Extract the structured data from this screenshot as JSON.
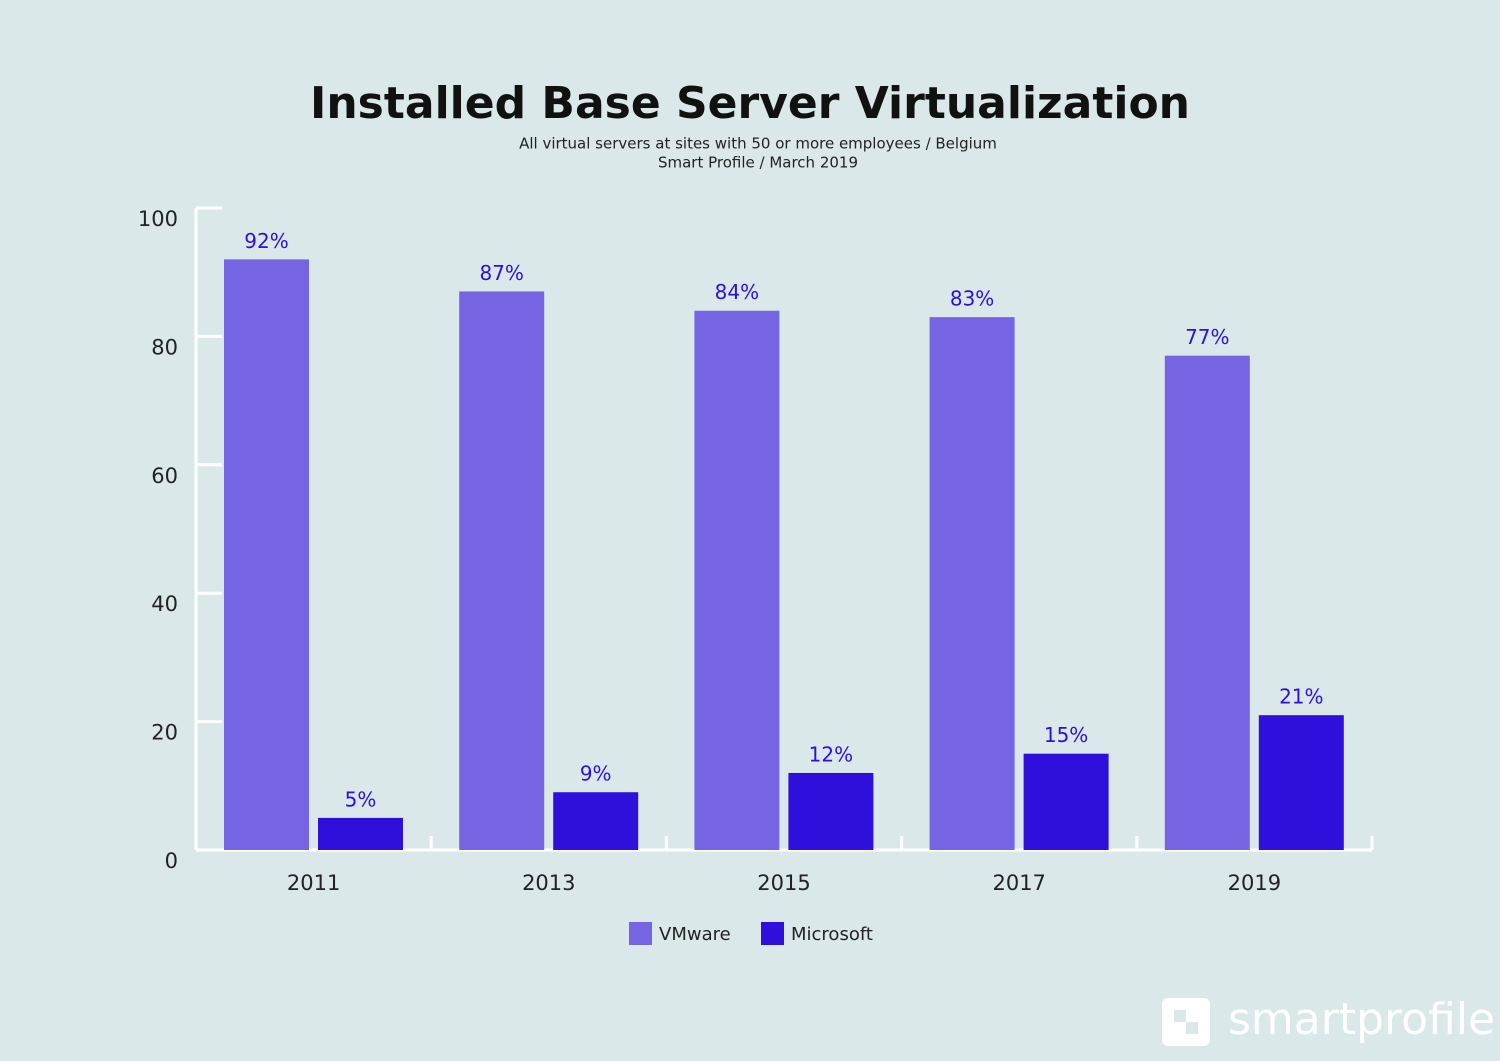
{
  "chart_data": {
    "type": "bar",
    "title": "Installed Base Server Virtualization",
    "subtitle": [
      "All virtual servers at sites with 50 or more employees / Belgium",
      "Smart Profile / March 2019"
    ],
    "categories": [
      "2011",
      "2013",
      "2015",
      "2017",
      "2019"
    ],
    "series": [
      {
        "name": "VMware",
        "color": "#7565e3",
        "values": [
          92,
          87,
          84,
          83,
          77
        ],
        "value_labels": [
          "92%",
          "87%",
          "84%",
          "83%",
          "77%"
        ]
      },
      {
        "name": "Microsoft",
        "color": "#2f0fdc",
        "values": [
          5,
          9,
          12,
          15,
          21
        ],
        "value_labels": [
          "5%",
          "9%",
          "12%",
          "15%",
          "21%"
        ]
      }
    ],
    "ylim": [
      0,
      100
    ],
    "yticks": [
      0,
      20,
      40,
      60,
      80,
      100
    ],
    "legend": "bottom",
    "watermark": "smartprofile"
  }
}
